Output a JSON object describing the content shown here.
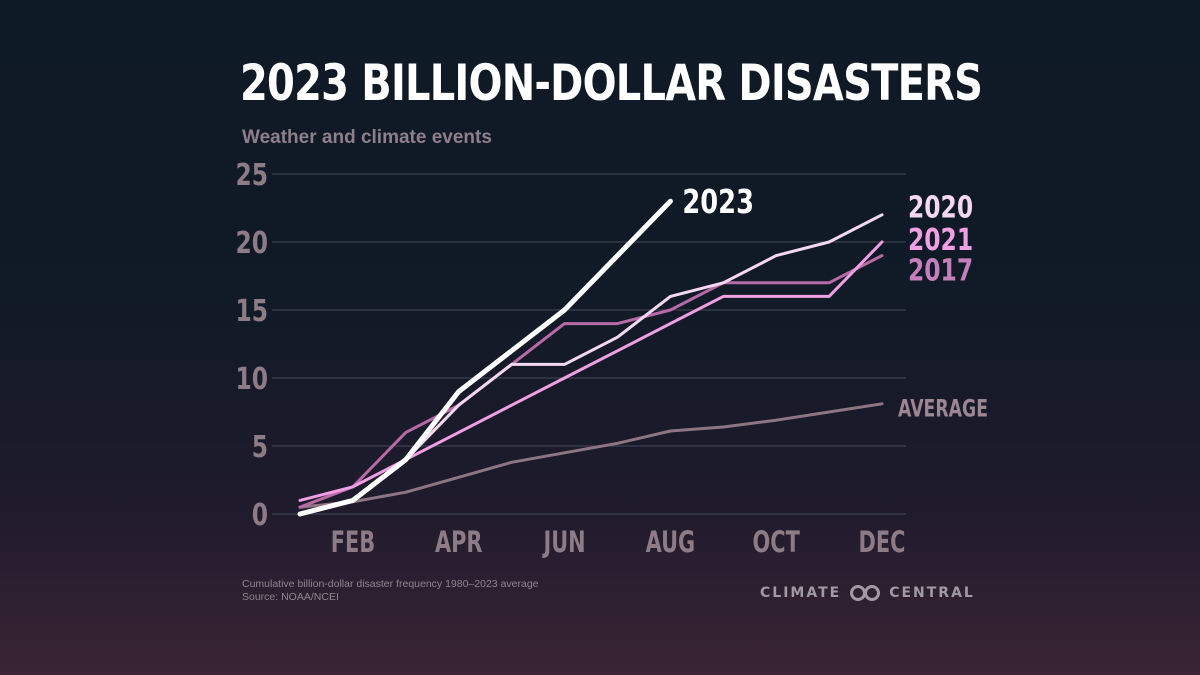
{
  "header": {
    "title": "2023 BILLION-DOLLAR DISASTERS",
    "subtitle": "Weather and climate events"
  },
  "footer": {
    "note_line1": "Cumulative billion-dollar disaster frequency 1980–2023 average",
    "note_line2": "Source: NOAA/NCEI",
    "brand_left": "CLIMATE",
    "brand_right": "CENTRAL",
    "brand_logo": "climate-central-logo"
  },
  "chart_data": {
    "type": "line",
    "title": "2023 BILLION-DOLLAR DISASTERS",
    "subtitle": "Weather and climate events",
    "xlabel": "",
    "ylabel": "",
    "x": [
      1,
      2,
      3,
      4,
      5,
      6,
      7,
      8,
      9,
      10,
      11,
      12
    ],
    "x_tick_positions": [
      2,
      4,
      6,
      8,
      10,
      12
    ],
    "x_tick_labels": [
      "FEB",
      "APR",
      "JUN",
      "AUG",
      "OCT",
      "DEC"
    ],
    "xlim": [
      1,
      12
    ],
    "ylim": [
      0,
      25
    ],
    "y_ticks": [
      0,
      5,
      10,
      15,
      20,
      25
    ],
    "grid": "horizontal",
    "series": [
      {
        "name": "AVERAGE",
        "color": "#8e7582",
        "width": 3,
        "values": [
          0.5,
          0.9,
          1.6,
          2.7,
          3.8,
          4.5,
          5.2,
          6.1,
          6.4,
          6.9,
          7.5,
          8.1
        ]
      },
      {
        "name": "2017",
        "color": "#b76aa6",
        "width": 3,
        "values": [
          0.5,
          2,
          6,
          8,
          11,
          14,
          14,
          15,
          17,
          17,
          17,
          19
        ]
      },
      {
        "name": "2020",
        "color": "#f4d8ef",
        "width": 3,
        "values": [
          0,
          1,
          4,
          8,
          11,
          11,
          13,
          16,
          17,
          19,
          20,
          22
        ]
      },
      {
        "name": "2021",
        "color": "#ef9fe2",
        "width": 3,
        "values": [
          1,
          2,
          4,
          6,
          8,
          10,
          12,
          14,
          16,
          16,
          16,
          20
        ]
      },
      {
        "name": "2023",
        "color": "#ffffff",
        "width": 5,
        "values": [
          0,
          1,
          4,
          9,
          12,
          15,
          19,
          23,
          null,
          null,
          null,
          null
        ]
      }
    ],
    "series_labels": [
      {
        "series": "2023",
        "text": "2023",
        "color": "#ffffff"
      },
      {
        "series": "2020",
        "text": "2020",
        "color": "#f4d8ef"
      },
      {
        "series": "2021",
        "text": "2021",
        "color": "#ef9fe2"
      },
      {
        "series": "2017",
        "text": "2017",
        "color": "#c67fbd"
      },
      {
        "series": "AVERAGE",
        "text": "AVERAGE",
        "color": "#9d8591"
      }
    ]
  }
}
